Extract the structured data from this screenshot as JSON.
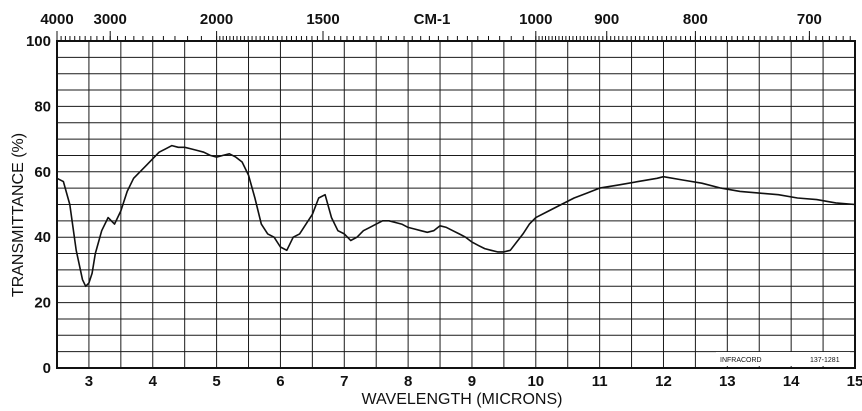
{
  "chart_data": {
    "type": "line",
    "xlabel": "WAVELENGTH (MICRONS)",
    "ylabel": "TRANSMITTANCE (%)",
    "top_axis_label": "CM-1",
    "xlim": [
      2.5,
      15
    ],
    "ylim": [
      0,
      100
    ],
    "grid": true,
    "x_ticks": [
      3,
      4,
      5,
      6,
      7,
      8,
      9,
      10,
      11,
      12,
      13,
      14,
      15
    ],
    "y_ticks": [
      0,
      20,
      40,
      60,
      80,
      100
    ],
    "top_ticks": [
      4000,
      3000,
      2000,
      1500,
      1000,
      900,
      800,
      700
    ],
    "annotations": [
      "INFRACORD",
      "137-1281"
    ],
    "series": [
      {
        "x": [
          2.5,
          2.6,
          2.7,
          2.8,
          2.9,
          2.95,
          3.0,
          3.05,
          3.1,
          3.2,
          3.3,
          3.4,
          3.5,
          3.6,
          3.7,
          3.8,
          3.9,
          4.0,
          4.1,
          4.2,
          4.3,
          4.4,
          4.5,
          4.6,
          4.7,
          4.8,
          4.9,
          5.0,
          5.1,
          5.2,
          5.3,
          5.4,
          5.5,
          5.6,
          5.7,
          5.8,
          5.9,
          6.0,
          6.1,
          6.2,
          6.3,
          6.4,
          6.5,
          6.6,
          6.7,
          6.8,
          6.9,
          7.0,
          7.1,
          7.2,
          7.3,
          7.4,
          7.5,
          7.6,
          7.7,
          7.8,
          7.9,
          8.0,
          8.1,
          8.2,
          8.3,
          8.4,
          8.5,
          8.6,
          8.7,
          8.8,
          8.9,
          9.0,
          9.1,
          9.2,
          9.3,
          9.4,
          9.5,
          9.6,
          9.7,
          9.8,
          9.9,
          10.0,
          10.2,
          10.4,
          10.6,
          10.8,
          11.0,
          11.3,
          11.6,
          11.9,
          12.0,
          12.3,
          12.6,
          12.9,
          13.2,
          13.5,
          13.8,
          14.1,
          14.4,
          14.7,
          15.0
        ],
        "values": [
          58,
          57,
          50,
          36,
          27,
          25,
          26,
          29,
          35,
          42,
          46,
          44,
          48,
          54,
          58,
          60,
          62,
          64,
          66,
          67,
          68,
          67.5,
          67.5,
          67,
          66.5,
          66,
          65,
          64.5,
          65,
          65.5,
          64.5,
          63,
          59,
          52,
          44,
          41,
          40,
          37,
          36,
          40,
          41,
          44,
          47,
          52,
          53,
          46,
          42,
          41,
          39,
          40,
          42,
          43,
          44,
          45,
          45,
          44.5,
          44,
          43,
          42.5,
          42,
          41.5,
          42,
          43.5,
          43,
          42,
          41,
          40,
          38.5,
          37.5,
          36.5,
          36,
          35.5,
          35.5,
          36,
          38.5,
          41,
          44,
          46,
          48,
          50,
          52,
          53.5,
          55,
          56,
          57,
          58,
          58.5,
          57.5,
          56.5,
          55,
          54,
          53.5,
          53,
          52,
          51.5,
          50.5,
          50
        ]
      }
    ]
  }
}
